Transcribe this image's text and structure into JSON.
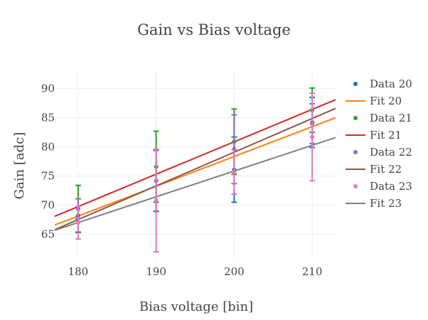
{
  "chart_data": {
    "type": "scatter",
    "title": "Gain vs Bias voltage",
    "xlabel": "Bias voltage [bin]",
    "ylabel": "Gain [adc]",
    "xlim": [
      177,
      213
    ],
    "ylim": [
      60.8,
      93
    ],
    "x_ticks": [
      180,
      190,
      200,
      210
    ],
    "y_ticks": [
      65,
      70,
      75,
      80,
      85,
      90
    ],
    "grid": true,
    "legend_position": "right",
    "series": [
      {
        "name": "Data 20",
        "kind": "markers",
        "color": "#1f77b4",
        "x": [
          180,
          190,
          200,
          210
        ],
        "y": [
          68.2,
          74.2,
          76.1,
          84.2
        ],
        "err": [
          2.9,
          5.2,
          5.6,
          4.3
        ]
      },
      {
        "name": "Fit 20",
        "kind": "line",
        "color": "#ff7f0e",
        "x": [
          177,
          213
        ],
        "y": [
          66.6,
          85.0
        ]
      },
      {
        "name": "Data 21",
        "kind": "markers",
        "color": "#2ca02c",
        "x": [
          180,
          190,
          200,
          210
        ],
        "y": [
          69.4,
          76.6,
          80.9,
          86.3
        ],
        "err": [
          4.0,
          6.1,
          5.6,
          3.8
        ]
      },
      {
        "name": "Fit 21",
        "kind": "line",
        "color": "#d62728",
        "x": [
          177,
          213
        ],
        "y": [
          68.1,
          88.1
        ]
      },
      {
        "name": "Data 22",
        "kind": "markers",
        "color": "#9467bd",
        "x": [
          180,
          190,
          200,
          210
        ],
        "y": [
          69.4,
          74.2,
          79.6,
          84.0
        ],
        "err": [
          1.7,
          5.3,
          5.9,
          3.4
        ]
      },
      {
        "name": "Fit 22",
        "kind": "line",
        "color": "#8c564b",
        "x": [
          177,
          213
        ],
        "y": [
          65.8,
          86.6
        ]
      },
      {
        "name": "Data 23",
        "kind": "markers",
        "color": "#e377c2",
        "x": [
          180,
          190,
          200,
          210
        ],
        "y": [
          67.0,
          70.8,
          75.7,
          81.7
        ],
        "err": [
          2.8,
          8.8,
          3.8,
          7.5
        ]
      },
      {
        "name": "Fit 23",
        "kind": "line",
        "color": "#7f7f7f",
        "x": [
          177,
          213
        ],
        "y": [
          65.7,
          81.6
        ]
      }
    ]
  }
}
